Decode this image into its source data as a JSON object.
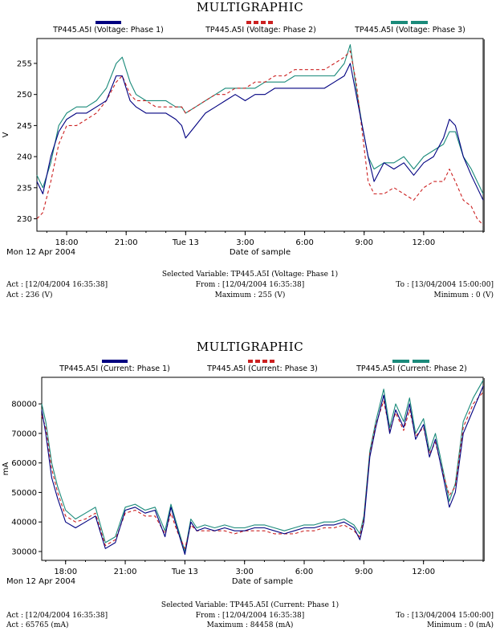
{
  "chart_data": [
    {
      "type": "line",
      "title": "MULTIGRAPHIC",
      "ylabel": "V",
      "xlabel": "Date of sample",
      "date_label": "Mon 12 Apr 2004",
      "ylim": [
        228,
        259
      ],
      "yticks": [
        "230",
        "235",
        "240",
        "245",
        "250",
        "255"
      ],
      "ytick_values": [
        230,
        235,
        240,
        245,
        250,
        255
      ],
      "xlim": [
        16.5,
        39.0
      ],
      "xticks": [
        "18:00",
        "21:00",
        "Tue 13",
        "3:00",
        "6:00",
        "9:00",
        "12:00"
      ],
      "xtick_values": [
        18,
        21,
        24,
        27,
        30,
        33,
        36
      ],
      "grid": false,
      "legend": "top",
      "series": [
        {
          "name": "TP445.A5I (Voltage: Phase 1)",
          "color": "#000080",
          "dash": "solid",
          "x": [
            16.5,
            16.8,
            17.2,
            17.6,
            18.0,
            18.5,
            19.0,
            19.5,
            20.0,
            20.5,
            20.8,
            21.2,
            21.5,
            22.0,
            22.5,
            23.0,
            23.5,
            23.8,
            24.0,
            24.5,
            25.0,
            25.5,
            26.0,
            26.5,
            27.0,
            27.5,
            28.0,
            28.5,
            29.0,
            29.5,
            30.0,
            30.5,
            31.0,
            31.5,
            32.0,
            32.3,
            32.6,
            32.9,
            33.2,
            33.5,
            34.0,
            34.5,
            35.0,
            35.5,
            36.0,
            36.5,
            37.0,
            37.3,
            37.6,
            38.0,
            38.4,
            38.7,
            39.0
          ],
          "y": [
            236,
            234,
            240,
            244,
            246,
            247,
            247,
            248,
            249,
            253,
            253,
            249,
            248,
            247,
            247,
            247,
            246,
            245,
            243,
            245,
            247,
            248,
            249,
            250,
            249,
            250,
            250,
            251,
            251,
            251,
            251,
            251,
            251,
            252,
            253,
            255,
            250,
            245,
            240,
            236,
            239,
            238,
            239,
            237,
            239,
            240,
            243,
            246,
            245,
            240,
            237,
            235,
            233
          ]
        },
        {
          "name": "TP445.A5I (Voltage: Phase 2)",
          "color": "#cc2020",
          "dash": "dashed",
          "x": [
            16.5,
            16.8,
            17.2,
            17.6,
            18.0,
            18.5,
            19.0,
            19.5,
            20.0,
            20.5,
            20.8,
            21.2,
            21.5,
            22.0,
            22.5,
            23.0,
            23.5,
            23.8,
            24.0,
            24.5,
            25.0,
            25.5,
            26.0,
            26.5,
            27.0,
            27.5,
            28.0,
            28.5,
            29.0,
            29.5,
            30.0,
            30.5,
            31.0,
            31.5,
            32.0,
            32.3,
            32.6,
            32.9,
            33.2,
            33.5,
            34.0,
            34.5,
            35.0,
            35.5,
            36.0,
            36.5,
            37.0,
            37.3,
            37.6,
            38.0,
            38.4,
            38.7,
            39.0
          ],
          "y": [
            230,
            231,
            236,
            242,
            245,
            245,
            246,
            247,
            249,
            252,
            253,
            250,
            249,
            249,
            248,
            248,
            248,
            248,
            247,
            248,
            249,
            250,
            250,
            251,
            251,
            252,
            252,
            253,
            253,
            254,
            254,
            254,
            254,
            255,
            256,
            257,
            252,
            244,
            236,
            234,
            234,
            235,
            234,
            233,
            235,
            236,
            236,
            238,
            236,
            233,
            232,
            230,
            229
          ]
        },
        {
          "name": "TP445.A5I (Voltage: Phase 3)",
          "color": "#1a8a7a",
          "dash": "solid",
          "x": [
            16.5,
            16.8,
            17.2,
            17.6,
            18.0,
            18.5,
            19.0,
            19.5,
            20.0,
            20.5,
            20.8,
            21.2,
            21.5,
            22.0,
            22.5,
            23.0,
            23.5,
            23.8,
            24.0,
            24.5,
            25.0,
            25.5,
            26.0,
            26.5,
            27.0,
            27.5,
            28.0,
            28.5,
            29.0,
            29.5,
            30.0,
            30.5,
            31.0,
            31.5,
            32.0,
            32.3,
            32.6,
            32.9,
            33.2,
            33.5,
            34.0,
            34.5,
            35.0,
            35.5,
            36.0,
            36.5,
            37.0,
            37.3,
            37.6,
            38.0,
            38.4,
            38.7,
            39.0
          ],
          "y": [
            237,
            235,
            239,
            245,
            247,
            248,
            248,
            249,
            251,
            255,
            256,
            252,
            250,
            249,
            249,
            249,
            248,
            248,
            247,
            248,
            249,
            250,
            251,
            251,
            251,
            251,
            252,
            252,
            252,
            253,
            253,
            253,
            253,
            253,
            255,
            258,
            251,
            245,
            240,
            238,
            239,
            239,
            240,
            238,
            240,
            241,
            242,
            244,
            244,
            240,
            238,
            236,
            234
          ]
        }
      ]
    },
    {
      "type": "line",
      "title": "MULTIGRAPHIC",
      "ylabel": "mA",
      "xlabel": "Date of sample",
      "date_label": "Mon 12 Apr 2004",
      "ylim": [
        27000,
        89000
      ],
      "yticks": [
        "30000",
        "40000",
        "50000",
        "60000",
        "70000",
        "80000"
      ],
      "ytick_values": [
        30000,
        40000,
        50000,
        60000,
        70000,
        80000
      ],
      "xlim": [
        16.8,
        39.0
      ],
      "xticks": [
        "18:00",
        "21:00",
        "Tue 13",
        "3:00",
        "6:00",
        "9:00",
        "12:00"
      ],
      "xtick_values": [
        18,
        21,
        24,
        27,
        30,
        33,
        36
      ],
      "grid": false,
      "legend": "top",
      "series": [
        {
          "name": "TP445.A5I (Current: Phase 1)",
          "color": "#000080",
          "dash": "solid",
          "x": [
            16.8,
            17.0,
            17.3,
            17.6,
            18.0,
            18.5,
            19.0,
            19.5,
            20.0,
            20.5,
            21.0,
            21.5,
            22.0,
            22.5,
            23.0,
            23.3,
            23.6,
            24.0,
            24.3,
            24.6,
            25.0,
            25.5,
            26.0,
            26.5,
            27.0,
            27.5,
            28.0,
            28.5,
            29.0,
            29.5,
            30.0,
            30.5,
            31.0,
            31.5,
            32.0,
            32.5,
            32.8,
            33.0,
            33.3,
            33.6,
            34.0,
            34.3,
            34.6,
            35.0,
            35.3,
            35.6,
            36.0,
            36.3,
            36.6,
            37.0,
            37.3,
            37.6,
            38.0,
            38.5,
            39.0
          ],
          "y": [
            78000,
            70000,
            55000,
            48000,
            40000,
            38000,
            40000,
            42000,
            31000,
            33000,
            44000,
            45000,
            43000,
            44000,
            35000,
            45000,
            38000,
            29000,
            40000,
            37000,
            38000,
            37000,
            38000,
            37000,
            37000,
            38000,
            38000,
            37000,
            36000,
            37000,
            38000,
            38000,
            39000,
            39000,
            40000,
            38000,
            34000,
            40000,
            62000,
            72000,
            83000,
            70000,
            78000,
            72000,
            80000,
            68000,
            73000,
            62000,
            68000,
            55000,
            45000,
            50000,
            70000,
            78000,
            86000
          ]
        },
        {
          "name": "TP445.A5I (Current: Phase 3)",
          "color": "#cc2020",
          "dash": "dashed",
          "x": [
            16.8,
            17.0,
            17.3,
            17.6,
            18.0,
            18.5,
            19.0,
            19.5,
            20.0,
            20.5,
            21.0,
            21.5,
            22.0,
            22.5,
            23.0,
            23.3,
            23.6,
            24.0,
            24.3,
            24.6,
            25.0,
            25.5,
            26.0,
            26.5,
            27.0,
            27.5,
            28.0,
            28.5,
            29.0,
            29.5,
            30.0,
            30.5,
            31.0,
            31.5,
            32.0,
            32.5,
            32.8,
            33.0,
            33.3,
            33.6,
            34.0,
            34.3,
            34.6,
            35.0,
            35.3,
            35.6,
            36.0,
            36.3,
            36.6,
            37.0,
            37.3,
            37.6,
            38.0,
            38.5,
            39.0
          ],
          "y": [
            76000,
            72000,
            58000,
            50000,
            42000,
            40000,
            41000,
            43000,
            32000,
            34000,
            43000,
            44000,
            42000,
            42000,
            36000,
            43000,
            37000,
            31000,
            39000,
            37000,
            37000,
            37000,
            37000,
            36000,
            37000,
            37000,
            37000,
            36000,
            36000,
            36000,
            37000,
            37000,
            38000,
            38000,
            39000,
            37000,
            35000,
            41000,
            63000,
            73000,
            81000,
            71000,
            77000,
            71000,
            78000,
            69000,
            72000,
            63000,
            67000,
            56000,
            49000,
            52000,
            72000,
            80000,
            84000
          ]
        },
        {
          "name": "TP445.A5I (Current: Phase 2)",
          "color": "#1a8a7a",
          "dash": "solid",
          "x": [
            16.8,
            17.0,
            17.3,
            17.6,
            18.0,
            18.5,
            19.0,
            19.5,
            20.0,
            20.5,
            21.0,
            21.5,
            22.0,
            22.5,
            23.0,
            23.3,
            23.6,
            24.0,
            24.3,
            24.6,
            25.0,
            25.5,
            26.0,
            26.5,
            27.0,
            27.5,
            28.0,
            28.5,
            29.0,
            29.5,
            30.0,
            30.5,
            31.0,
            31.5,
            32.0,
            32.5,
            32.8,
            33.0,
            33.3,
            33.6,
            34.0,
            34.3,
            34.6,
            35.0,
            35.3,
            35.6,
            36.0,
            36.3,
            36.6,
            37.0,
            37.3,
            37.6,
            38.0,
            38.5,
            39.0
          ],
          "y": [
            80000,
            74000,
            60000,
            52000,
            44000,
            41000,
            43000,
            45000,
            33000,
            35000,
            45000,
            46000,
            44000,
            45000,
            37000,
            46000,
            39000,
            30000,
            41000,
            38000,
            39000,
            38000,
            39000,
            38000,
            38000,
            39000,
            39000,
            38000,
            37000,
            38000,
            39000,
            39000,
            40000,
            40000,
            41000,
            39000,
            36000,
            42000,
            64000,
            74000,
            85000,
            72000,
            80000,
            74000,
            82000,
            70000,
            75000,
            64000,
            70000,
            57000,
            47000,
            53000,
            74000,
            82000,
            88000
          ]
        }
      ]
    }
  ],
  "panels": [
    {
      "title": "MULTIGRAPHIC",
      "legend": [
        "TP445.A5I (Voltage: Phase 1)",
        "TP445.A5I (Voltage: Phase 2)",
        "TP445.A5I (Voltage: Phase 3)"
      ],
      "date_label": "Mon 12 Apr 2004",
      "xlabel": "Date of sample",
      "selected": "Selected Variable: TP445.A5I (Voltage: Phase 1)",
      "act_time": "Act : [12/04/2004 16:35:38]",
      "from": "From : [12/04/2004 16:35:38]",
      "to": "To : [13/04/2004 15:00:00]",
      "act_value": "Act : 236 (V)",
      "maximum": "Maximum : 255 (V)",
      "minimum": "Minimum : 0 (V)"
    },
    {
      "title": "MULTIGRAPHIC",
      "legend": [
        "TP445.A5I (Current: Phase 1)",
        "TP445.A5I (Current: Phase 3)",
        "TP445.A5I (Current: Phase 2)"
      ],
      "date_label": "Mon 12 Apr 2004",
      "xlabel": "Date of sample",
      "selected": "Selected Variable: TP445.A5I (Current: Phase 1)",
      "act_time": "Act : [12/04/2004 16:35:38]",
      "from": "From : [12/04/2004 16:35:38]",
      "to": "To : [13/04/2004 15:00:00]",
      "act_value": "Act : 65765 (mA)",
      "maximum": "Maximum : 84458 (mA)",
      "minimum": "Minimum : 0 (mA)"
    }
  ],
  "colors": {
    "phase_blue": "#000080",
    "phase_red": "#cc2020",
    "phase_teal": "#1a8a7a"
  }
}
